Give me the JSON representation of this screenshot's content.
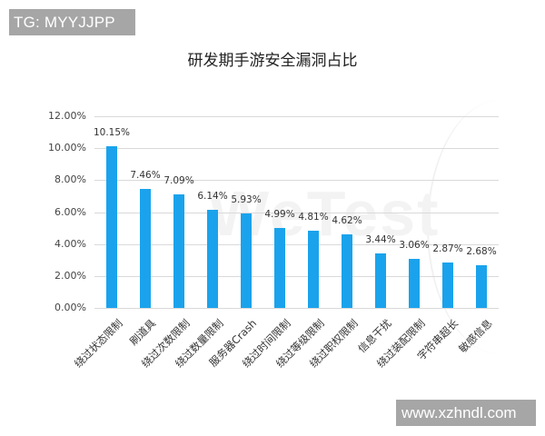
{
  "overlays": {
    "tag": "TG: MYYJJPP",
    "url": "www.xzhndl.com",
    "watermark": "WeTest"
  },
  "chart_data": {
    "type": "bar",
    "title": "研发期手游安全漏洞占比",
    "xlabel": "",
    "ylabel": "",
    "ylim": [
      0,
      12
    ],
    "yticks": [
      "0.00%",
      "2.00%",
      "4.00%",
      "6.00%",
      "8.00%",
      "10.00%",
      "12.00%"
    ],
    "grid": true,
    "legend": null,
    "bar_color": "#1aa3ec",
    "categories": [
      "绕过状态限制",
      "刷道具",
      "绕过次数限制",
      "绕过数量限制",
      "服务器Crash",
      "绕过时间限制",
      "绕过等级限制",
      "绕过职权限制",
      "信息干扰",
      "绕过装配限制",
      "字符串超长",
      "敏感信息"
    ],
    "values": [
      10.15,
      7.46,
      7.09,
      6.14,
      5.93,
      4.99,
      4.81,
      4.62,
      3.44,
      3.06,
      2.87,
      2.68
    ],
    "value_labels": [
      "10.15%",
      "7.46%",
      "7.09%",
      "6.14%",
      "5.93%",
      "4.99%",
      "4.81%",
      "4.62%",
      "3.44%",
      "3.06%",
      "2.87%",
      "2.68%"
    ]
  }
}
